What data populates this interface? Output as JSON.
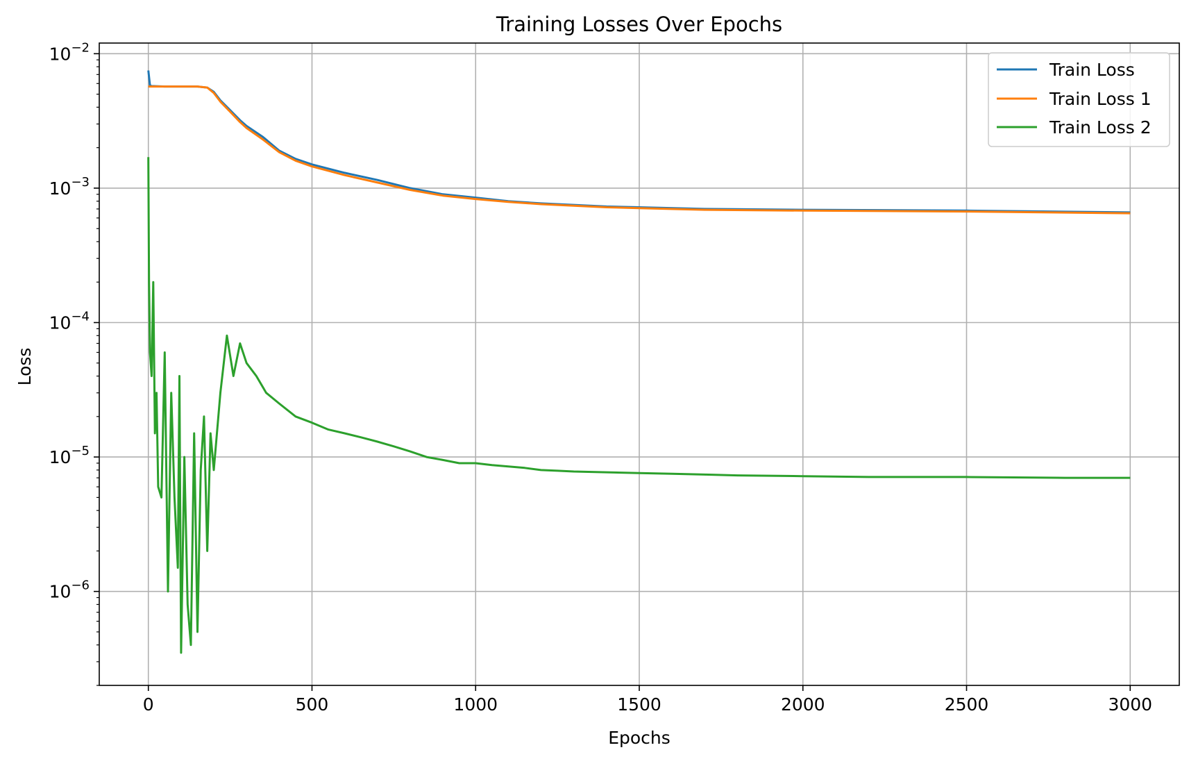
{
  "chart_data": {
    "type": "line",
    "title": "Training Losses Over Epochs",
    "xlabel": "Epochs",
    "ylabel": "Loss",
    "xlim": [
      -150,
      3150
    ],
    "ylim": [
      2e-07,
      0.012
    ],
    "yscale": "log",
    "grid": true,
    "legend_position": "top-right",
    "x_ticks": [
      {
        "value": 0,
        "label": "0"
      },
      {
        "value": 500,
        "label": "500"
      },
      {
        "value": 1000,
        "label": "1000"
      },
      {
        "value": 1500,
        "label": "1500"
      },
      {
        "value": 2000,
        "label": "2000"
      },
      {
        "value": 2500,
        "label": "2500"
      },
      {
        "value": 3000,
        "label": "3000"
      }
    ],
    "y_ticks": [
      {
        "value": 1e-06,
        "base": "10",
        "exp": "−6"
      },
      {
        "value": 1e-05,
        "base": "10",
        "exp": "−5"
      },
      {
        "value": 0.0001,
        "base": "10",
        "exp": "−4"
      },
      {
        "value": 0.001,
        "base": "10",
        "exp": "−3"
      },
      {
        "value": 0.01,
        "base": "10",
        "exp": "−2"
      }
    ],
    "series": [
      {
        "name": "Train Loss",
        "color": "#1f77b4",
        "x": [
          0,
          5,
          10,
          50,
          100,
          150,
          180,
          200,
          220,
          250,
          280,
          300,
          350,
          400,
          450,
          500,
          600,
          700,
          800,
          900,
          1000,
          1100,
          1200,
          1300,
          1400,
          1500,
          1700,
          2000,
          2500,
          3000
        ],
        "values": [
          0.0075,
          0.0058,
          0.00575,
          0.0057,
          0.0057,
          0.0057,
          0.0056,
          0.0052,
          0.0045,
          0.0038,
          0.0032,
          0.0029,
          0.0024,
          0.0019,
          0.00165,
          0.0015,
          0.0013,
          0.00115,
          0.001,
          0.0009,
          0.00085,
          0.0008,
          0.00077,
          0.00075,
          0.00073,
          0.00072,
          0.0007,
          0.00069,
          0.00068,
          0.00066
        ]
      },
      {
        "name": "Train Loss 1",
        "color": "#ff7f0e",
        "x": [
          0,
          5,
          10,
          50,
          100,
          150,
          180,
          200,
          220,
          250,
          280,
          300,
          350,
          400,
          450,
          500,
          600,
          700,
          800,
          900,
          1000,
          1100,
          1200,
          1300,
          1400,
          1500,
          1700,
          2000,
          2500,
          3000
        ],
        "values": [
          0.0057,
          0.0057,
          0.0057,
          0.0057,
          0.0057,
          0.0057,
          0.0056,
          0.0051,
          0.0044,
          0.0037,
          0.0031,
          0.0028,
          0.0023,
          0.00185,
          0.0016,
          0.00145,
          0.00125,
          0.0011,
          0.00097,
          0.00088,
          0.00083,
          0.00079,
          0.00076,
          0.00074,
          0.00072,
          0.00071,
          0.00069,
          0.00068,
          0.00067,
          0.00065
        ]
      },
      {
        "name": "Train Loss 2",
        "color": "#2ca02c",
        "x": [
          0,
          2,
          5,
          10,
          15,
          20,
          25,
          30,
          40,
          50,
          60,
          70,
          80,
          90,
          95,
          100,
          110,
          120,
          130,
          140,
          150,
          160,
          170,
          180,
          190,
          200,
          220,
          240,
          260,
          280,
          300,
          330,
          360,
          400,
          450,
          500,
          550,
          600,
          650,
          700,
          750,
          800,
          850,
          900,
          950,
          1000,
          1050,
          1100,
          1150,
          1200,
          1250,
          1300,
          1400,
          1500,
          1600,
          1700,
          1800,
          2000,
          2200,
          2500,
          2800,
          3000
        ],
        "values": [
          0.0017,
          0.0002,
          6e-05,
          4e-05,
          0.0002,
          1.5e-05,
          3e-05,
          6e-06,
          5e-06,
          6e-05,
          1e-06,
          3e-05,
          5e-06,
          1.5e-06,
          4e-05,
          3.5e-07,
          1e-05,
          8e-07,
          4e-07,
          1.5e-05,
          5e-07,
          8e-06,
          2e-05,
          2e-06,
          1.5e-05,
          8e-06,
          3e-05,
          8e-05,
          4e-05,
          7e-05,
          5e-05,
          4e-05,
          3e-05,
          2.5e-05,
          2e-05,
          1.8e-05,
          1.6e-05,
          1.5e-05,
          1.4e-05,
          1.3e-05,
          1.2e-05,
          1.1e-05,
          1e-05,
          9.5e-06,
          9e-06,
          9e-06,
          8.7e-06,
          8.5e-06,
          8.3e-06,
          8e-06,
          7.9e-06,
          7.8e-06,
          7.7e-06,
          7.6e-06,
          7.5e-06,
          7.4e-06,
          7.3e-06,
          7.2e-06,
          7.1e-06,
          7.1e-06,
          7e-06,
          7e-06
        ]
      }
    ]
  }
}
